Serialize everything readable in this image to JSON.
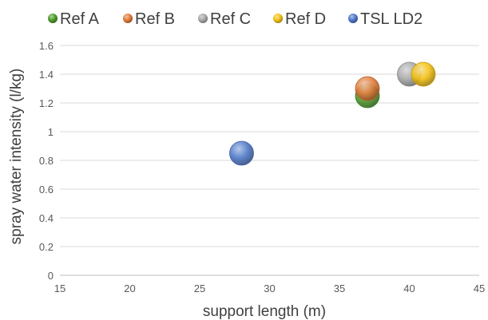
{
  "chart_data": {
    "type": "scatter",
    "title": "",
    "xlabel": "support length (m)",
    "ylabel": "spray water intensity (l/kg)",
    "xlim": [
      15,
      45
    ],
    "ylim": [
      0,
      1.6
    ],
    "x_ticks": [
      "15",
      "20",
      "25",
      "30",
      "35",
      "40",
      "45"
    ],
    "y_ticks": [
      "0",
      "0.2",
      "0.4",
      "0.6",
      "0.8",
      "1",
      "1.2",
      "1.4",
      "1.6"
    ],
    "grid": "horizontal",
    "legend_position": "top",
    "series": [
      {
        "name": "Ref A",
        "color": "#4f9a2c",
        "points": [
          {
            "x": 37,
            "y": 1.25
          }
        ]
      },
      {
        "name": "Ref B",
        "color": "#e07b3a",
        "points": [
          {
            "x": 37,
            "y": 1.3
          }
        ]
      },
      {
        "name": "Ref C",
        "color": "#a8a8a8",
        "points": [
          {
            "x": 40,
            "y": 1.4
          }
        ]
      },
      {
        "name": "Ref D",
        "color": "#f2c012",
        "points": [
          {
            "x": 41,
            "y": 1.4
          }
        ]
      },
      {
        "name": "TSL LD2",
        "color": "#4e78c8",
        "points": [
          {
            "x": 28,
            "y": 0.85
          }
        ]
      }
    ]
  }
}
